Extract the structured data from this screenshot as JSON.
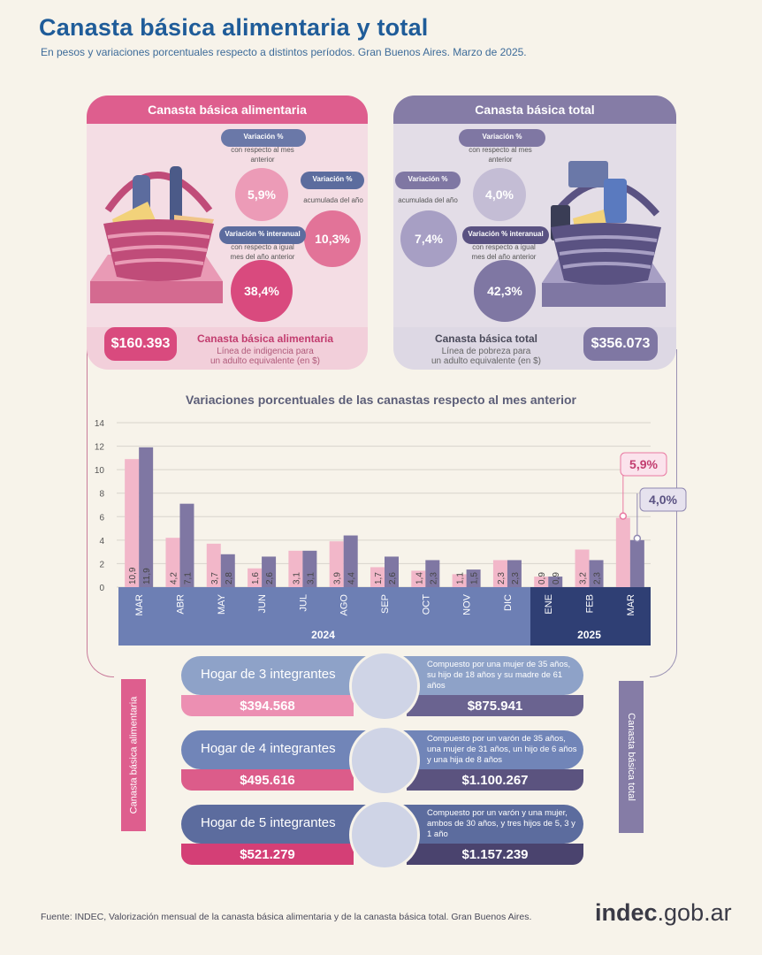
{
  "header": {
    "title": "Canasta básica alimentaria y total",
    "subtitle": "En pesos y variaciones porcentuales respecto a distintos períodos. Gran Buenos Aires. Marzo de 2025."
  },
  "cba": {
    "heading": "Canasta básica alimentaria",
    "var_monthly": {
      "title": "Variación %",
      "subtitle": "con respecto al mes anterior",
      "value": "5,9%"
    },
    "var_ytd": {
      "title": "Variación %",
      "subtitle": "acumulada del año",
      "value": "10,3%"
    },
    "var_yoy": {
      "title": "Variación % interanual",
      "subtitle": "con respecto a igual mes del año anterior",
      "value": "38,4%"
    },
    "price": "$160.393",
    "label": "Canasta básica alimentaria",
    "desc_1": "Línea de indigencia para",
    "desc_2": "un adulto equivalente (en $)"
  },
  "cbt": {
    "heading": "Canasta básica total",
    "var_monthly": {
      "title": "Variación %",
      "subtitle": "con respecto al mes anterior",
      "value": "4,0%"
    },
    "var_ytd": {
      "title": "Variación %",
      "subtitle": "acumulada del año",
      "value": "7,4%"
    },
    "var_yoy": {
      "title": "Variación % interanual",
      "subtitle": "con respecto a igual mes del año anterior",
      "value": "42,3%"
    },
    "price": "$356.073",
    "label": "Canasta básica total",
    "desc_1": "Línea de pobreza para",
    "desc_2": "un adulto equivalente (en $)"
  },
  "chart_data": {
    "type": "bar",
    "title": "Variaciones porcentuales de las canastas respecto al mes anterior",
    "categories": [
      "MAR",
      "ABR",
      "MAY",
      "JUN",
      "JUL",
      "AGO",
      "SEP",
      "OCT",
      "NOV",
      "DIC",
      "ENE",
      "FEB",
      "MAR"
    ],
    "years": [
      {
        "label": "2024",
        "from": 0,
        "to": 9
      },
      {
        "label": "2025",
        "from": 10,
        "to": 12
      }
    ],
    "series": [
      {
        "name": "Canasta básica alimentaria",
        "color": "#f2b7c9",
        "values": [
          10.9,
          4.2,
          3.7,
          1.6,
          3.1,
          3.9,
          1.7,
          1.4,
          1.1,
          2.3,
          0.9,
          3.2,
          5.9
        ],
        "labels": [
          "10,9",
          "4,2",
          "3,7",
          "1,6",
          "3,1",
          "3,9",
          "1,7",
          "1,4",
          "1,1",
          "2,3",
          "0,9",
          "3,2",
          "5,9%"
        ]
      },
      {
        "name": "Canasta básica total",
        "color": "#7f77a3",
        "values": [
          11.9,
          7.1,
          2.8,
          2.6,
          3.1,
          4.4,
          2.6,
          2.3,
          1.5,
          2.3,
          0.9,
          2.3,
          4.0
        ],
        "labels": [
          "11,9",
          "7,1",
          "2,8",
          "2,6",
          "3,1",
          "4,4",
          "2,6",
          "2,3",
          "1,5",
          "2,3",
          "0,9",
          "2,3",
          "4,0%"
        ]
      }
    ],
    "yticks": [
      0,
      2,
      4,
      6,
      8,
      10,
      12,
      14
    ],
    "ylim": [
      0,
      14
    ],
    "grid": true
  },
  "households": [
    {
      "name": "Hogar de 3 integrantes",
      "desc": "Compuesto por una mujer de 35 años, su hijo de 18 años y su madre de 61 años",
      "cba": "$394.568",
      "cbt": "$875.941"
    },
    {
      "name": "Hogar de 4 integrantes",
      "desc": "Compuesto por un varón de 35 años, una mujer de 31 años, un hijo de 6 años y una hija de 8 años",
      "cba": "$495.616",
      "cbt": "$1.100.267"
    },
    {
      "name": "Hogar de 5 integrantes",
      "desc": "Compuesto por un varón y una mujer, ambos de 30 años, y tres hijos de 5, 3 y 1 año",
      "cba": "$521.279",
      "cbt": "$1.157.239"
    }
  ],
  "side_labels": {
    "left": "Canasta básica alimentaria",
    "right": "Canasta básica total"
  },
  "footer": {
    "source": "Fuente: INDEC, Valorización mensual de la canasta básica alimentaria y de la canasta básica total. Gran Buenos Aires.",
    "logo_main": "indec",
    "logo_suffix": ".gob.ar"
  },
  "colors": {
    "pink": "#de5e8e",
    "light_pink": "#f2b7c9",
    "purple": "#7f77a3",
    "navy": "#5c6c9e"
  }
}
